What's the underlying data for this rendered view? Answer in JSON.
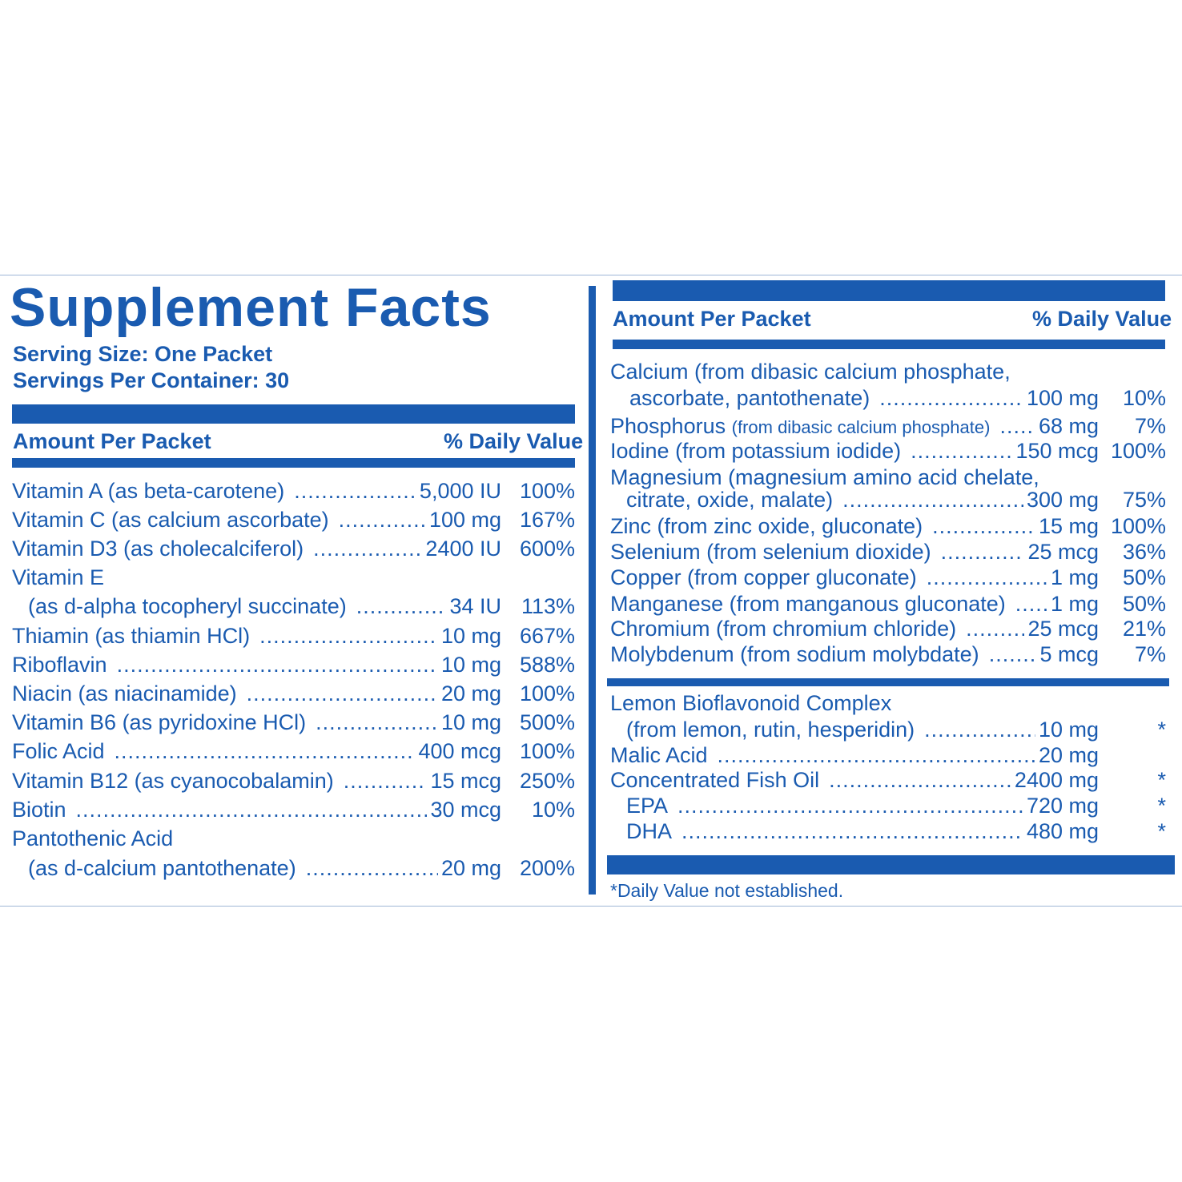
{
  "title": "Supplement Facts",
  "serving_size": "Serving Size: One Packet",
  "servings_per_container": "Servings Per Container: 30",
  "left": {
    "header_amount": "Amount Per Packet",
    "header_dv": "% Daily Value",
    "rows": [
      {
        "name": "Vitamin A (as beta-carotene)",
        "amount": "5,000 IU",
        "dv": "100%"
      },
      {
        "name": "Vitamin C (as calcium ascorbate)",
        "amount": "100 mg",
        "dv": "167%"
      },
      {
        "name": "Vitamin D3 (as cholecalciferol)",
        "amount": "2400 IU",
        "dv": "600%"
      },
      {
        "name": "Vitamin E",
        "amount": "",
        "dv": ""
      },
      {
        "name": "(as d-alpha tocopheryl succinate)",
        "amount": "34 IU",
        "dv": "113%"
      },
      {
        "name": "Thiamin (as thiamin HCl)",
        "amount": "10 mg",
        "dv": "667%"
      },
      {
        "name": "Riboflavin",
        "amount": "10 mg",
        "dv": "588%"
      },
      {
        "name": "Niacin (as niacinamide)",
        "amount": "20 mg",
        "dv": "100%"
      },
      {
        "name": "Vitamin B6 (as pyridoxine HCl)",
        "amount": "10 mg",
        "dv": "500%"
      },
      {
        "name": "Folic Acid",
        "amount": "400 mcg",
        "dv": "100%"
      },
      {
        "name": "Vitamin B12 (as cyanocobalamin)",
        "amount": "15 mcg",
        "dv": "250%"
      },
      {
        "name": "Biotin",
        "amount": "30 mcg",
        "dv": "10%"
      },
      {
        "name": "Pantothenic Acid",
        "amount": "",
        "dv": ""
      },
      {
        "name": "(as d-calcium pantothenate)",
        "amount": "20 mg",
        "dv": "200%"
      }
    ]
  },
  "right": {
    "header_amount": "Amount Per Packet",
    "header_dv": "% Daily Value",
    "rows": [
      {
        "name": "Calcium (from dibasic calcium phosphate,",
        "amount": "",
        "dv": ""
      },
      {
        "name": "ascorbate, pantothenate)",
        "amount": "100 mg",
        "dv": "10%"
      },
      {
        "name": "Phosphorus",
        "qualifier": "(from dibasic calcium phosphate)",
        "amount": "68 mg",
        "dv": "7%"
      },
      {
        "name": "Iodine (from potassium iodide)",
        "amount": "150 mcg",
        "dv": "100%"
      },
      {
        "name": "Magnesium (magnesium amino acid chelate,",
        "amount": "",
        "dv": ""
      },
      {
        "name": "citrate, oxide, malate)",
        "amount": "300 mg",
        "dv": "75%"
      },
      {
        "name": "Zinc (from zinc oxide, gluconate)",
        "amount": "15 mg",
        "dv": "100%"
      },
      {
        "name": "Selenium (from selenium dioxide)",
        "amount": "25 mcg",
        "dv": "36%"
      },
      {
        "name": "Copper (from copper gluconate)",
        "amount": "1 mg",
        "dv": "50%"
      },
      {
        "name": "Manganese (from manganous gluconate)",
        "amount": "1 mg",
        "dv": "50%"
      },
      {
        "name": "Chromium (from chromium chloride)",
        "amount": "25 mcg",
        "dv": "21%"
      },
      {
        "name": "Molybdenum (from sodium molybdate)",
        "amount": "5 mcg",
        "dv": "7%"
      }
    ],
    "other_rows": [
      {
        "name": "Lemon Bioflavonoid Complex",
        "amount": "",
        "dv": ""
      },
      {
        "name": "(from lemon, rutin, hesperidin)",
        "amount": "10 mg",
        "dv": "*"
      },
      {
        "name": "Malic Acid",
        "amount": "20 mg",
        "dv": ""
      },
      {
        "name": "Concentrated Fish Oil",
        "amount": "2400 mg",
        "dv": "*"
      },
      {
        "name": "EPA",
        "amount": "720 mg",
        "dv": "*"
      },
      {
        "name": "DHA",
        "amount": "480 mg",
        "dv": "*"
      }
    ],
    "footnote": "*Daily Value not established."
  },
  "colors": {
    "ink": "#1a5bb0",
    "rule": "#9fb6d6",
    "background": "#ffffff"
  }
}
